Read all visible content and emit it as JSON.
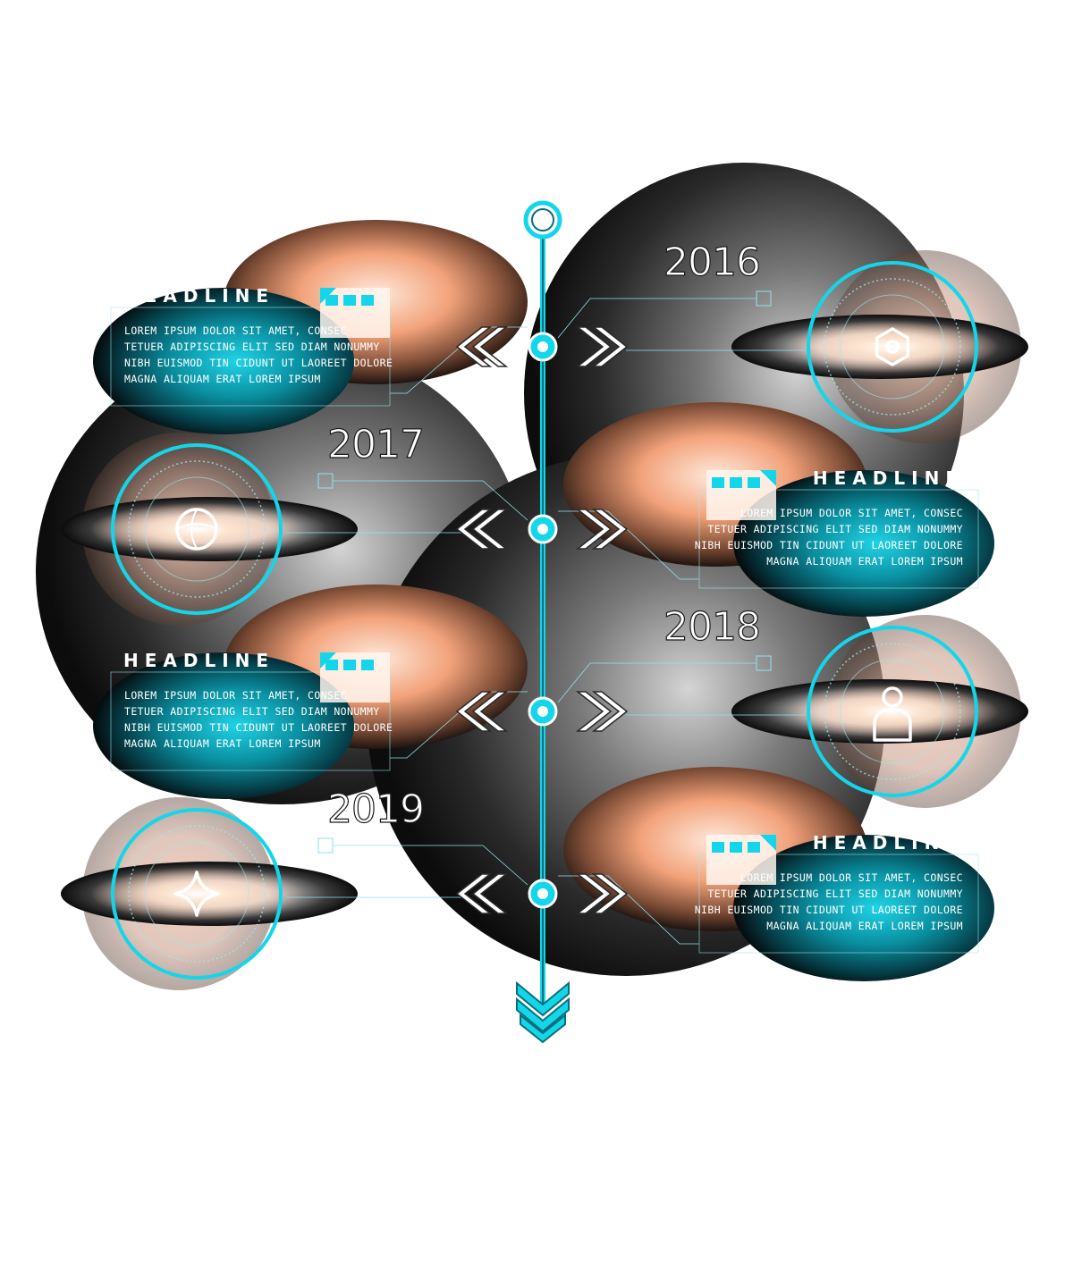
{
  "colors": {
    "accent": "#14d6ea",
    "sphere_dark": "#101010",
    "sphere_light": "#c9c9c9",
    "peach": "#f2a27a",
    "teal_panel": "#0aa6b8"
  },
  "timeline": {
    "years": [
      "2016",
      "2017",
      "2018",
      "2019"
    ],
    "headline": "HEADLINE",
    "body_lines": [
      "LOREM IPSUM DOLOR SIT AMET, CONSEC",
      "TETUER ADIPISCING ELIT SED DIAM NONUMMY",
      "NIBH EUISMOD TIN CIDUNT UT LAOREET DOLORE",
      "MAGNA ALIQUAM ERAT LOREM IPSUM"
    ],
    "icons": [
      "hexagon-icon",
      "globe-icon",
      "person-icon",
      "star-icon"
    ]
  }
}
